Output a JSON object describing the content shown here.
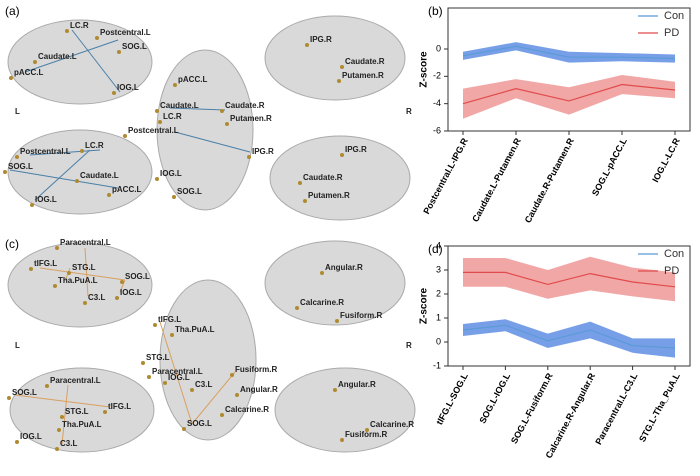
{
  "panel_a": {
    "label": "(a)",
    "left": "L",
    "right": "R",
    "labels": [
      "LC.R",
      "Postcentral.L",
      "Caudate.L",
      "SOG.L",
      "pACC.L",
      "IOG.L",
      "pACC.L",
      "Caudate.L",
      "LC.R",
      "Caudate.R",
      "Putamen.R",
      "Postcentral.L",
      "IPG.R",
      "IOG.L",
      "SOG.L",
      "IPG.R",
      "Caudate.R",
      "Putamen.R",
      "Postcentral.L",
      "LC.R",
      "SOG.L",
      "Caudate.L",
      "pACC.L",
      "IOG.L",
      "IPG.R",
      "Caudate.R",
      "Putamen.R"
    ]
  },
  "panel_c": {
    "label": "(c)",
    "left": "L",
    "right": "R",
    "labels": [
      "Paracentral.L",
      "tIFG.L",
      "SOG.L",
      "STG.L",
      "Tha.PuA.L",
      "IOG.L",
      "C3.L",
      "tIFG.L",
      "Tha.PuA.L",
      "STG.L",
      "Paracentral.L",
      "C3.L",
      "Fusiform.R",
      "IOG.L",
      "Angular.R",
      "Calcarine.R",
      "SOG.L",
      "Angular.R",
      "Calcarine.R",
      "Fusiform.R",
      "Paracentral.L",
      "SOG.L",
      "STG.L",
      "tIFG.L",
      "Tha.PuA.L",
      "IOG.L",
      "C3.L",
      "Angular.R",
      "Calcarine.R",
      "Fusiform.R"
    ]
  },
  "chart_data": [
    {
      "type": "line",
      "label": "(b)",
      "ylabel": "Z-score",
      "categories": [
        "Postcentral.L-IPG.R",
        "Caudate.L-Putamen.R",
        "Caudate.R-Putamen.R",
        "SOG.L-pACC.L",
        "IOG.L-LC.R"
      ],
      "series": [
        {
          "name": "Con",
          "color": "#5b9bd5",
          "band_color": "#4a7fe0",
          "values": [
            -0.5,
            0.2,
            -0.6,
            -0.6,
            -0.7
          ],
          "errors": [
            0.3,
            0.3,
            0.4,
            0.3,
            0.3
          ]
        },
        {
          "name": "PD",
          "color": "#e04b4b",
          "band_color": "#ee8a8a",
          "values": [
            -4.0,
            -2.9,
            -3.8,
            -2.6,
            -3.0
          ],
          "errors": [
            1.1,
            0.7,
            1.0,
            0.7,
            0.6
          ]
        }
      ],
      "ylim": [
        -6,
        3
      ],
      "yticks": [
        0,
        -2,
        -4,
        -6
      ],
      "legend": "upper right"
    },
    {
      "type": "line",
      "label": "(d)",
      "ylabel": "Z-score",
      "categories": [
        "tIFG.L-SOG.L",
        "SOG.L-IOG.L",
        "SOG.L-Fusiform.R",
        "Calcarine.R-Angular.R",
        "Paracentral.L-C3.L",
        "STG.L-Tha_PuA.L"
      ],
      "series": [
        {
          "name": "Con",
          "color": "#5b9bd5",
          "band_color": "#4a7fe0",
          "values": [
            0.5,
            0.7,
            0.05,
            0.5,
            -0.15,
            -0.25
          ],
          "errors": [
            0.25,
            0.25,
            0.3,
            0.35,
            0.3,
            0.4
          ]
        },
        {
          "name": "PD",
          "color": "#e04b4b",
          "band_color": "#ee8a8a",
          "values": [
            2.9,
            2.9,
            2.4,
            2.85,
            2.5,
            2.3
          ],
          "errors": [
            0.6,
            0.6,
            0.6,
            0.7,
            0.6,
            0.6
          ]
        }
      ],
      "ylim": [
        -1,
        4
      ],
      "yticks": [
        4,
        3,
        2,
        1,
        0,
        -1
      ],
      "legend": "upper right"
    }
  ]
}
